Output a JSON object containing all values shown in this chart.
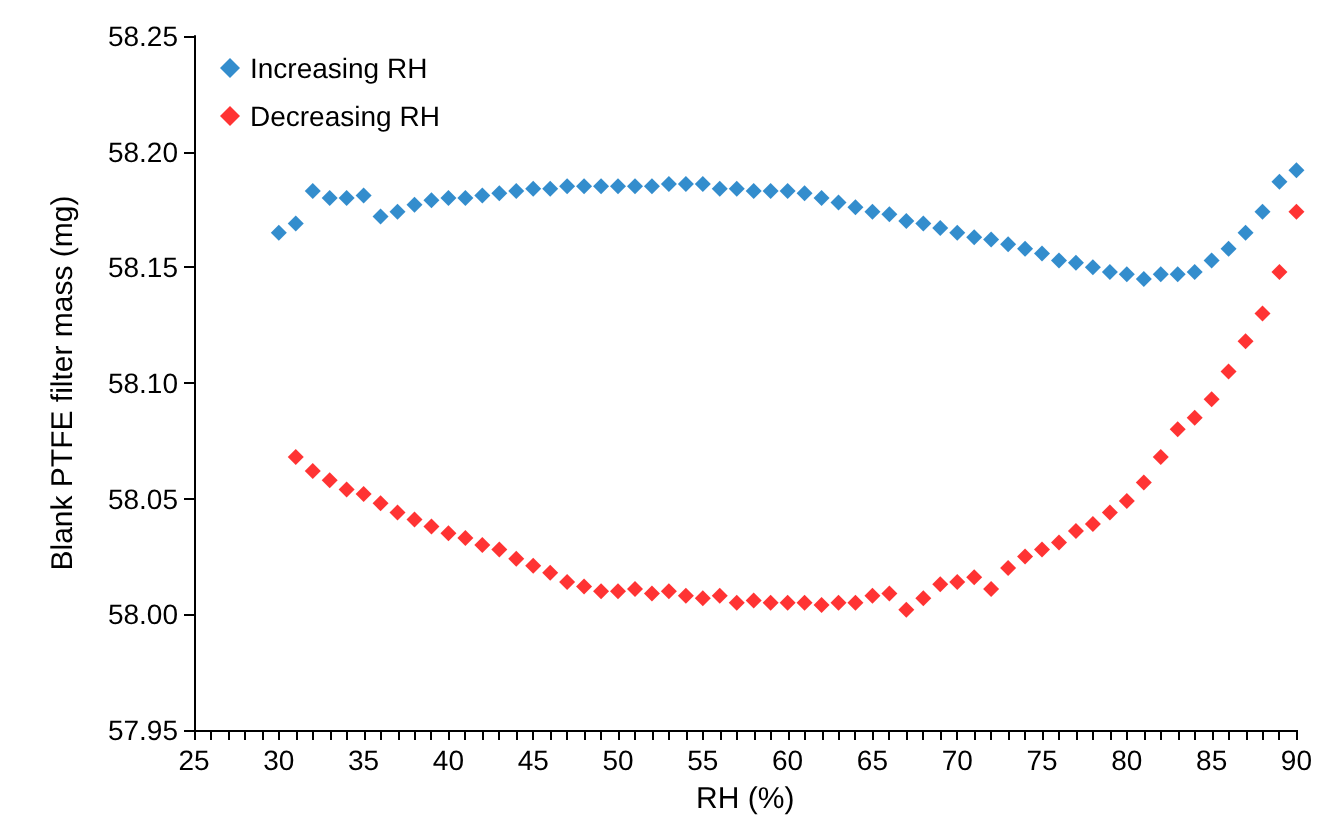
{
  "chart_data": {
    "type": "scatter",
    "xlabel": "RH (%)",
    "ylabel": "Blank PTFE filter mass (mg)",
    "marker": "diamond",
    "legend": "top left",
    "grid": false,
    "xlim": [
      25,
      90
    ],
    "xticks": [
      25,
      {
        "value": 26,
        "label": null
      },
      {
        "value": 27,
        "label": null
      },
      {
        "value": 28,
        "label": null
      },
      {
        "value": 29,
        "label": null
      },
      30,
      {
        "value": 31,
        "label": null
      },
      {
        "value": 32,
        "label": null
      },
      {
        "value": 33,
        "label": null
      },
      {
        "value": 34,
        "label": null
      },
      35,
      {
        "value": 36,
        "label": null
      },
      {
        "value": 37,
        "label": null
      },
      {
        "value": 38,
        "label": null
      },
      {
        "value": 39,
        "label": null
      },
      40,
      {
        "value": 41,
        "label": null
      },
      {
        "value": 42,
        "label": null
      },
      {
        "value": 43,
        "label": null
      },
      {
        "value": 44,
        "label": null
      },
      45,
      {
        "value": 46,
        "label": null
      },
      {
        "value": 47,
        "label": null
      },
      {
        "value": 48,
        "label": null
      },
      {
        "value": 49,
        "label": null
      },
      50,
      {
        "value": 51,
        "label": null
      },
      {
        "value": 52,
        "label": null
      },
      {
        "value": 53,
        "label": null
      },
      {
        "value": 54,
        "label": null
      },
      55,
      {
        "value": 56,
        "label": null
      },
      {
        "value": 57,
        "label": null
      },
      {
        "value": 58,
        "label": null
      },
      {
        "value": 59,
        "label": null
      },
      60,
      {
        "value": 61,
        "label": null
      },
      {
        "value": 62,
        "label": null
      },
      {
        "value": 63,
        "label": null
      },
      {
        "value": 64,
        "label": null
      },
      65,
      {
        "value": 66,
        "label": null
      },
      {
        "value": 67,
        "label": null
      },
      {
        "value": 68,
        "label": null
      },
      {
        "value": 69,
        "label": null
      },
      70,
      {
        "value": 71,
        "label": null
      },
      {
        "value": 72,
        "label": null
      },
      {
        "value": 73,
        "label": null
      },
      {
        "value": 74,
        "label": null
      },
      75,
      {
        "value": 76,
        "label": null
      },
      {
        "value": 77,
        "label": null
      },
      {
        "value": 78,
        "label": null
      },
      {
        "value": 79,
        "label": null
      },
      80,
      {
        "value": 81,
        "label": null
      },
      {
        "value": 82,
        "label": null
      },
      {
        "value": 83,
        "label": null
      },
      {
        "value": 84,
        "label": null
      },
      85,
      {
        "value": 86,
        "label": null
      },
      {
        "value": 87,
        "label": null
      },
      {
        "value": 88,
        "label": null
      },
      {
        "value": 89,
        "label": null
      },
      90
    ],
    "ylim": [
      57.95,
      58.25
    ],
    "yticks": [
      {
        "value": 57.95,
        "label": "57.95"
      },
      {
        "value": 58.0,
        "label": "58.00"
      },
      {
        "value": 58.05,
        "label": "58.05"
      },
      {
        "value": 58.1,
        "label": "58.10"
      },
      {
        "value": 58.15,
        "label": "58.15"
      },
      {
        "value": 58.2,
        "label": "58.20"
      },
      {
        "value": 58.25,
        "label": "58.25"
      }
    ],
    "series": [
      {
        "name": "Increasing RH",
        "color": "#0070c0",
        "x": [
          30,
          31,
          32,
          33,
          34,
          35,
          36,
          37,
          38,
          39,
          40,
          41,
          42,
          43,
          44,
          45,
          46,
          47,
          48,
          49,
          50,
          51,
          52,
          53,
          54,
          55,
          56,
          57,
          58,
          59,
          60,
          61,
          62,
          63,
          64,
          65,
          66,
          67,
          68,
          69,
          70,
          71,
          72,
          73,
          74,
          75,
          76,
          77,
          78,
          79,
          80,
          81,
          82,
          83,
          84,
          85,
          86,
          87,
          88,
          89,
          90
        ],
        "values": [
          58.165,
          58.169,
          58.183,
          58.18,
          58.18,
          58.181,
          58.172,
          58.174,
          58.177,
          58.179,
          58.18,
          58.18,
          58.181,
          58.182,
          58.183,
          58.184,
          58.184,
          58.185,
          58.185,
          58.185,
          58.185,
          58.185,
          58.185,
          58.186,
          58.186,
          58.186,
          58.184,
          58.184,
          58.183,
          58.183,
          58.183,
          58.182,
          58.18,
          58.178,
          58.176,
          58.174,
          58.173,
          58.17,
          58.169,
          58.167,
          58.165,
          58.163,
          58.162,
          58.16,
          58.158,
          58.156,
          58.153,
          58.152,
          58.15,
          58.148,
          58.147,
          58.145,
          58.147,
          58.147,
          58.148,
          58.153,
          58.158,
          58.165,
          58.174,
          58.187,
          58.192
        ]
      },
      {
        "name": "Decreasing RH",
        "color": "#ff0000",
        "x": [
          31,
          32,
          33,
          34,
          35,
          36,
          37,
          38,
          39,
          40,
          41,
          42,
          43,
          44,
          45,
          46,
          47,
          48,
          49,
          50,
          51,
          52,
          53,
          54,
          55,
          56,
          57,
          58,
          59,
          60,
          61,
          62,
          63,
          64,
          65,
          66,
          67,
          68,
          69,
          70,
          71,
          72,
          73,
          74,
          75,
          76,
          77,
          78,
          79,
          80,
          81,
          82,
          83,
          84,
          85,
          86,
          87,
          88,
          89,
          90
        ],
        "values": [
          58.068,
          58.062,
          58.058,
          58.054,
          58.052,
          58.048,
          58.044,
          58.041,
          58.038,
          58.035,
          58.033,
          58.03,
          58.028,
          58.024,
          58.021,
          58.018,
          58.014,
          58.012,
          58.01,
          58.01,
          58.011,
          58.009,
          58.01,
          58.008,
          58.007,
          58.008,
          58.005,
          58.006,
          58.005,
          58.005,
          58.005,
          58.004,
          58.005,
          58.005,
          58.008,
          58.009,
          58.002,
          58.007,
          58.013,
          58.014,
          58.016,
          58.011,
          58.02,
          58.025,
          58.028,
          58.031,
          58.036,
          58.039,
          58.044,
          58.049,
          58.057,
          58.068,
          58.08,
          58.085,
          58.093,
          58.105,
          58.118,
          58.13,
          58.148,
          58.174
        ]
      }
    ]
  }
}
